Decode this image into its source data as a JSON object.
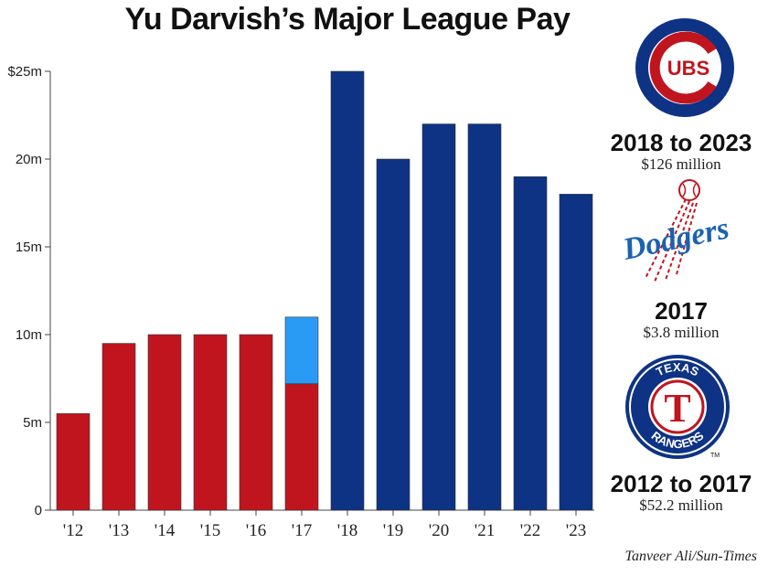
{
  "colors": {
    "rangers": "#c0151f",
    "dodgers": "#2a9bf5",
    "cubs": "#0e3384"
  },
  "chart_data": {
    "type": "bar",
    "stacked": true,
    "title": "Yu Darvish’s Major League Pay",
    "xlabel": "",
    "ylabel": "",
    "categories": [
      "'12",
      "'13",
      "'14",
      "'15",
      "'16",
      "'17",
      "'18",
      "'19",
      "'20",
      "'21",
      "'22",
      "'23"
    ],
    "series": [
      {
        "name": "Texas Rangers",
        "color": "#c0151f",
        "values": [
          5.5,
          9.5,
          10,
          10,
          10,
          7.2,
          0,
          0,
          0,
          0,
          0,
          0
        ]
      },
      {
        "name": "Los Angeles Dodgers",
        "color": "#2a9bf5",
        "values": [
          0,
          0,
          0,
          0,
          0,
          3.8,
          0,
          0,
          0,
          0,
          0,
          0
        ]
      },
      {
        "name": "Chicago Cubs",
        "color": "#0e3384",
        "values": [
          0,
          0,
          0,
          0,
          0,
          0,
          25,
          20,
          22,
          22,
          19,
          18
        ]
      }
    ],
    "ylim": [
      0,
      25
    ],
    "yticks": [
      0,
      5,
      10,
      15,
      20,
      25
    ],
    "ytick_labels": [
      "0",
      "5m",
      "10m",
      "15m",
      "20m",
      "$25m"
    ],
    "grid": false
  },
  "teams": [
    {
      "name": "Chicago Cubs",
      "logo_text": "UBS",
      "years": "2018 to 2023",
      "amount": "$126 million"
    },
    {
      "name": "Los Angeles Dodgers",
      "logo_text": "Dodgers",
      "years": "2017",
      "amount": "$3.8 million"
    },
    {
      "name": "Texas Rangers",
      "logo_text_top": "TEXAS",
      "logo_letter": "T",
      "logo_text_bottom": "RANGERS",
      "logo_mark": "TM",
      "years": "2012 to 2017",
      "amount": "$52.2 million"
    }
  ],
  "credit": "Tanveer Ali/Sun-Times"
}
